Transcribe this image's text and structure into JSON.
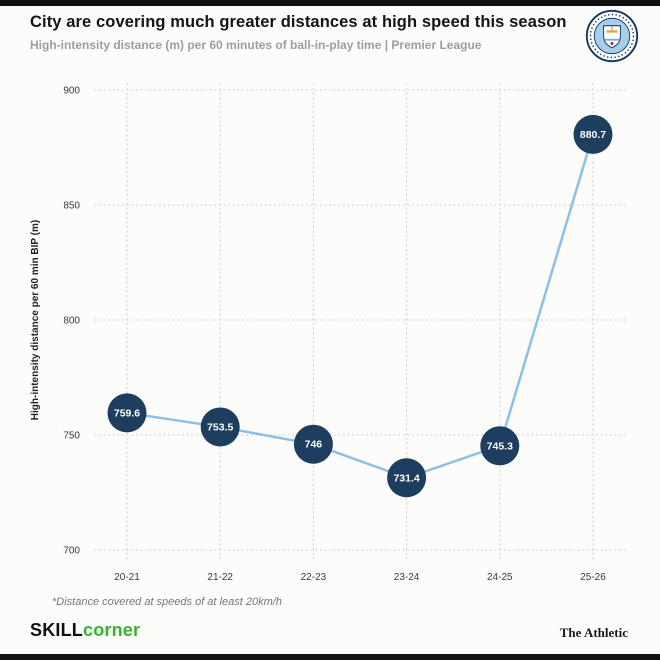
{
  "header": {
    "title": "City are covering much greater distances at high speed this season",
    "subtitle": "High-intensity distance (m) per 60 minutes of ball-in-play time | Premier League",
    "badge_icon": "manchester-city-crest"
  },
  "chart_data": {
    "type": "line",
    "categories": [
      "20-21",
      "21-22",
      "22-23",
      "23-24",
      "24-25",
      "25-26"
    ],
    "values": [
      759.6,
      753.5,
      746,
      731.4,
      745.3,
      880.7
    ],
    "labels": [
      "759.6",
      "753.5",
      "746",
      "731.4",
      "745.3",
      "880.7"
    ],
    "title": "City are covering much greater distances at high speed this season",
    "xlabel": "",
    "ylabel": "High-intensity distance per 60 min BIP (m)",
    "ylim": [
      700,
      900
    ],
    "yticks": [
      700,
      750,
      800,
      850,
      900
    ],
    "grid": "dotted",
    "legend": "none",
    "line_color": "#8cc0e5",
    "point_color": "#1d3e5e",
    "point_label_color": "#ffffff"
  },
  "footnote": "*Distance covered at speeds of at least 20km/h",
  "footer": {
    "brand_left_black": "SKILL",
    "brand_left_green": "corner",
    "brand_green_color": "#38b22c",
    "brand_right": "The Athletic"
  }
}
